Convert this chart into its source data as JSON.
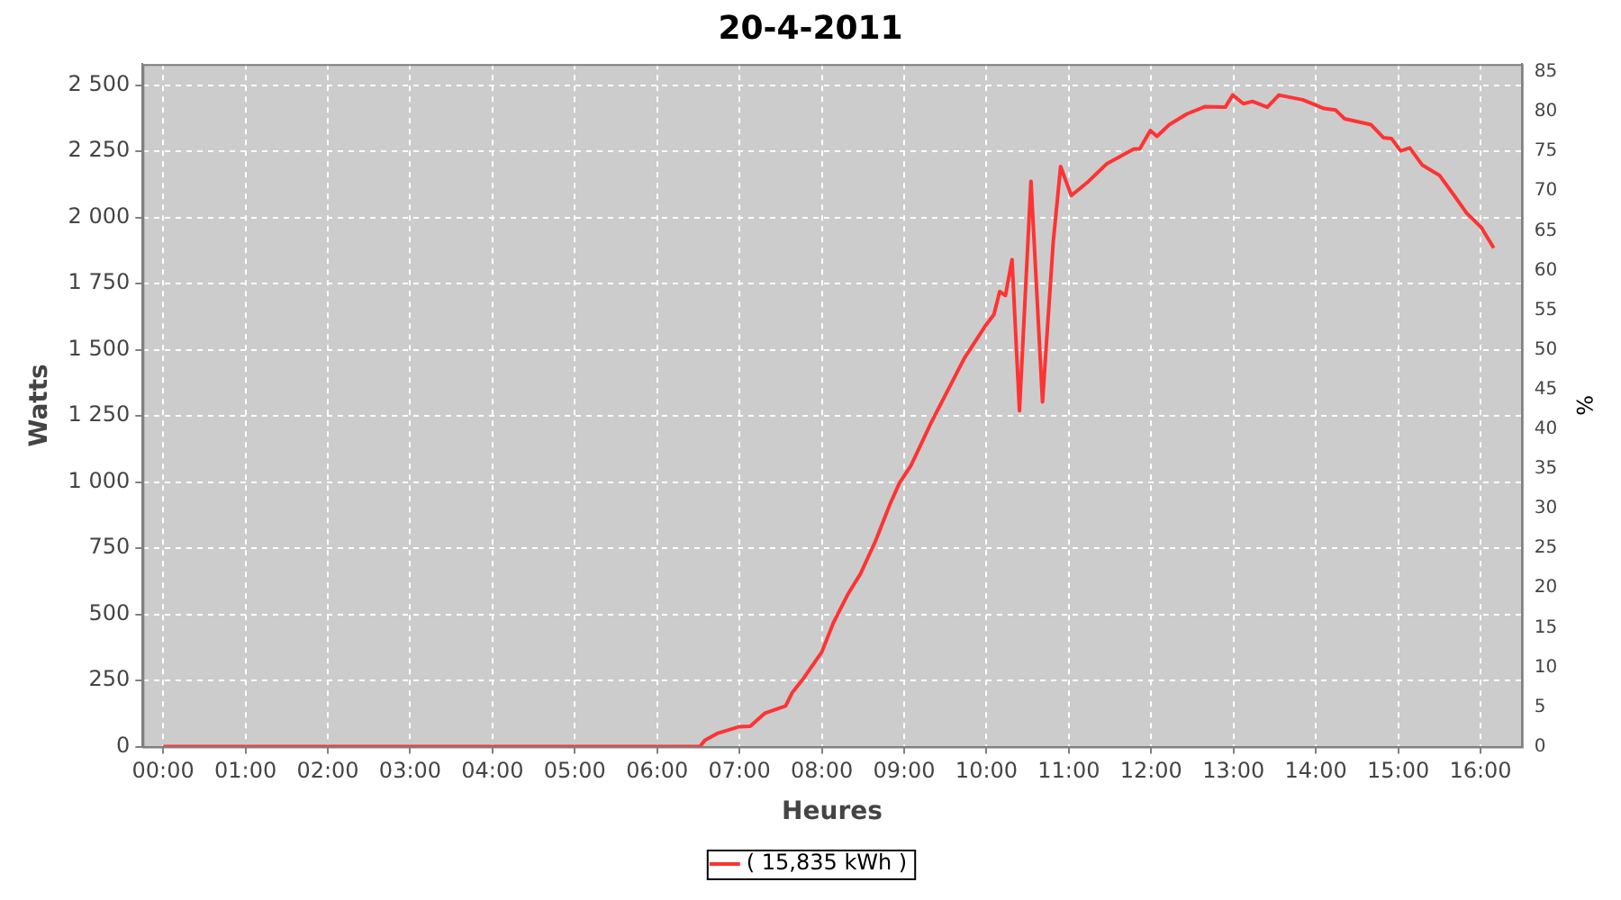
{
  "chart_data": {
    "type": "line",
    "title": "20-4-2011",
    "xlabel": "Heures",
    "ylabel": "Watts",
    "y2label": "%",
    "x": [
      0,
      1,
      2,
      3,
      4,
      5,
      6,
      6.5,
      6.52,
      6.58,
      6.74,
      6.99,
      7.13,
      7.31,
      7.56,
      7.64,
      7.78,
      8.0,
      8.14,
      8.32,
      8.47,
      8.65,
      8.83,
      8.94,
      9.08,
      9.23,
      9.33,
      9.73,
      9.98,
      10.09,
      10.16,
      10.23,
      10.31,
      10.4,
      10.54,
      10.68,
      10.81,
      10.9,
      11.03,
      11.24,
      11.46,
      11.79,
      11.86,
      11.99,
      12.07,
      12.22,
      12.43,
      12.65,
      12.9,
      12.99,
      13.12,
      13.23,
      13.41,
      13.55,
      13.84,
      14.1,
      14.24,
      14.35,
      14.67,
      14.82,
      14.92,
      15.03,
      15.14,
      15.29,
      15.5,
      15.68,
      15.83,
      16.01,
      16.16
    ],
    "series": [
      {
        "name": "( 15,835 kWh )",
        "color": "#ff3333",
        "values": [
          0,
          0,
          0,
          0,
          0,
          0,
          0,
          0,
          0,
          24,
          51,
          75,
          77,
          127,
          154,
          204,
          259,
          358,
          468,
          578,
          654,
          776,
          918,
          995,
          1061,
          1160,
          1226,
          1468,
          1588,
          1633,
          1720,
          1705,
          1841,
          1270,
          2137,
          1303,
          1907,
          2193,
          2083,
          2137,
          2203,
          2259,
          2259,
          2329,
          2307,
          2351,
          2391,
          2419,
          2417,
          2463,
          2430,
          2439,
          2417,
          2463,
          2445,
          2412,
          2406,
          2373,
          2351,
          2302,
          2298,
          2252,
          2263,
          2199,
          2160,
          2083,
          2017,
          1962,
          1885
        ]
      }
    ],
    "xlim": [
      -0.25,
      16.5
    ],
    "xticks": [
      {
        "value": 0,
        "label": "00:00"
      },
      {
        "value": 1,
        "label": "01:00"
      },
      {
        "value": 2,
        "label": "02:00"
      },
      {
        "value": 3,
        "label": "03:00"
      },
      {
        "value": 4,
        "label": "04:00"
      },
      {
        "value": 5,
        "label": "05:00"
      },
      {
        "value": 6,
        "label": "06:00"
      },
      {
        "value": 7,
        "label": "07:00"
      },
      {
        "value": 8,
        "label": "08:00"
      },
      {
        "value": 9,
        "label": "09:00"
      },
      {
        "value": 10,
        "label": "10:00"
      },
      {
        "value": 11,
        "label": "11:00"
      },
      {
        "value": 12,
        "label": "12:00"
      },
      {
        "value": 13,
        "label": "13:00"
      },
      {
        "value": 14,
        "label": "14:00"
      },
      {
        "value": 15,
        "label": "15:00"
      },
      {
        "value": 16,
        "label": "16:00"
      }
    ],
    "ylim": [
      0,
      2580
    ],
    "yticks": [
      {
        "value": 0,
        "label": "0"
      },
      {
        "value": 250,
        "label": "250"
      },
      {
        "value": 500,
        "label": "500"
      },
      {
        "value": 750,
        "label": "750"
      },
      {
        "value": 1000,
        "label": "1 000"
      },
      {
        "value": 1250,
        "label": "1 250"
      },
      {
        "value": 1500,
        "label": "1 500"
      },
      {
        "value": 1750,
        "label": "1 750"
      },
      {
        "value": 2000,
        "label": "2 000"
      },
      {
        "value": 2250,
        "label": "2 250"
      },
      {
        "value": 2500,
        "label": "2 500"
      }
    ],
    "y2lim": [
      0,
      86
    ],
    "y2ticks": [
      0,
      5,
      10,
      15,
      20,
      25,
      30,
      35,
      40,
      45,
      50,
      55,
      60,
      65,
      70,
      75,
      80,
      85
    ],
    "grid": true,
    "legend": "bottom",
    "marker": "none",
    "line_style": "solid"
  }
}
